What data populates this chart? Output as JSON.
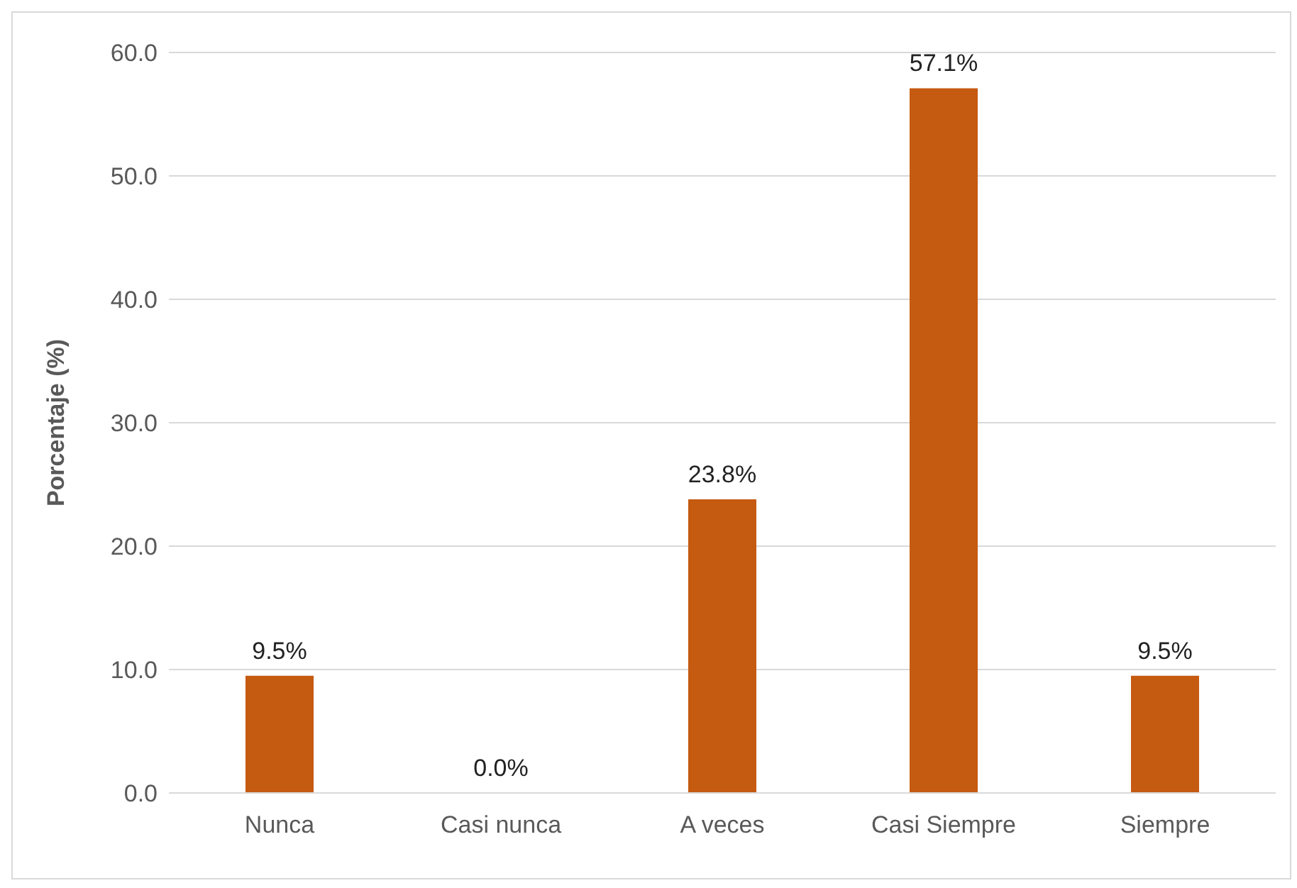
{
  "chart_data": {
    "type": "bar",
    "ylabel": "Porcentaje (%)",
    "categories": [
      "Nunca",
      "Casi nunca",
      "A veces",
      "Casi Siempre",
      "Siempre"
    ],
    "values": [
      9.5,
      0.0,
      23.8,
      57.1,
      9.5
    ],
    "value_labels": [
      "9.5%",
      "0.0%",
      "23.8%",
      "57.1%",
      "9.5%"
    ],
    "color": "#c55a11",
    "ylim": [
      0,
      60
    ],
    "yticks": [
      {
        "value": 0,
        "label": "0.0"
      },
      {
        "value": 10,
        "label": "10.0"
      },
      {
        "value": 20,
        "label": "20.0"
      },
      {
        "value": 30,
        "label": "30.0"
      },
      {
        "value": 40,
        "label": "40.0"
      },
      {
        "value": 50,
        "label": "50.0"
      },
      {
        "value": 60,
        "label": "60.0"
      }
    ],
    "grid": "y",
    "legend": false
  }
}
